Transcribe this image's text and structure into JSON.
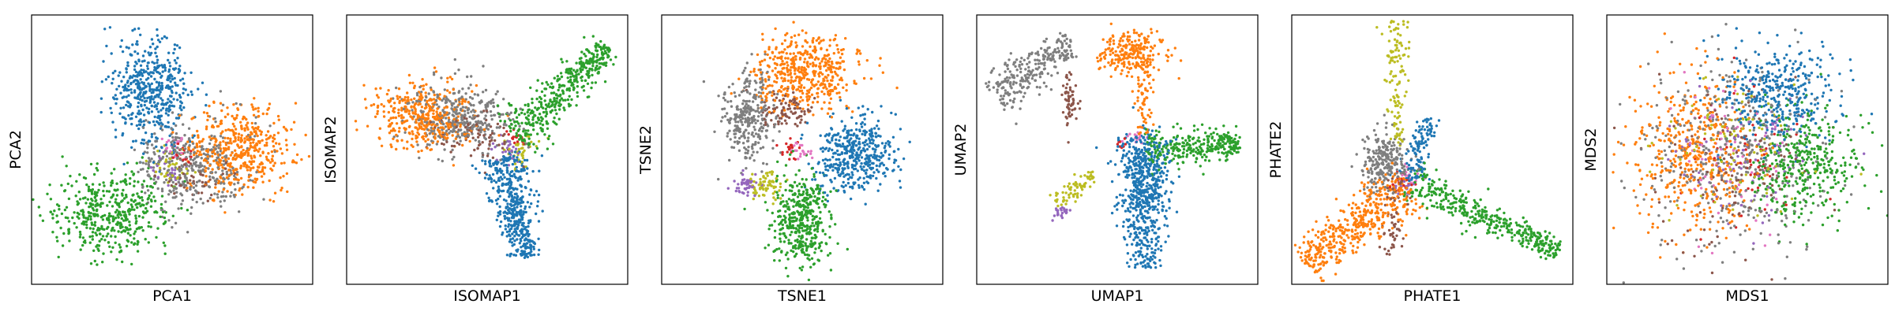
{
  "colors": {
    "blue": "#1f77b4",
    "orange": "#ff7f0e",
    "green": "#2ca02c",
    "red": "#d62728",
    "purple": "#9467bd",
    "brown": "#8c564b",
    "pink": "#e377c2",
    "gray": "#7f7f7f",
    "olive": "#bcbd22"
  },
  "chart_data": [
    {
      "type": "scatter",
      "title": "",
      "xlabel": "PCA1",
      "ylabel": "PCA2",
      "xlim": [
        0,
        1
      ],
      "ylim": [
        0,
        1
      ],
      "ticks": "none",
      "grid": false,
      "clusters": [
        {
          "color": "gray",
          "center": [
            0.58,
            0.44
          ],
          "spread": [
            0.1,
            0.08
          ],
          "count": 380
        },
        {
          "color": "orange",
          "center": [
            0.74,
            0.5
          ],
          "spread": [
            0.09,
            0.08
          ],
          "count": 460
        },
        {
          "color": "green",
          "center": [
            0.28,
            0.27
          ],
          "spread": [
            0.1,
            0.08
          ],
          "count": 460
        },
        {
          "color": "blue",
          "center": [
            0.42,
            0.71
          ],
          "spread": [
            0.07,
            0.1
          ],
          "count": 480
        },
        {
          "color": "olive",
          "center": [
            0.5,
            0.44
          ],
          "spread": [
            0.03,
            0.03
          ],
          "count": 40
        },
        {
          "color": "purple",
          "center": [
            0.49,
            0.42
          ],
          "spread": [
            0.03,
            0.03
          ],
          "count": 25
        },
        {
          "color": "red",
          "center": [
            0.53,
            0.48
          ],
          "spread": [
            0.02,
            0.02
          ],
          "count": 15
        },
        {
          "color": "pink",
          "center": [
            0.5,
            0.5
          ],
          "spread": [
            0.02,
            0.02
          ],
          "count": 20
        },
        {
          "color": "brown",
          "center": [
            0.6,
            0.39
          ],
          "spread": [
            0.05,
            0.03
          ],
          "count": 40
        }
      ]
    },
    {
      "type": "scatter",
      "title": "",
      "xlabel": "ISOMAP1",
      "ylabel": "ISOMAP2",
      "xlim": [
        0,
        1
      ],
      "ylim": [
        0,
        1
      ],
      "ticks": "none",
      "grid": false,
      "clusters": [
        {
          "color": "orange",
          "center": [
            0.27,
            0.62
          ],
          "spread": [
            0.09,
            0.06
          ],
          "count": 380
        },
        {
          "color": "gray",
          "center": [
            0.4,
            0.62
          ],
          "spread": [
            0.09,
            0.06
          ],
          "count": 360
        },
        {
          "color": "brown",
          "center": [
            0.44,
            0.55
          ],
          "spread": [
            0.06,
            0.05
          ],
          "count": 80
        },
        {
          "color": "olive",
          "center": [
            0.62,
            0.5
          ],
          "spread": [
            0.03,
            0.04
          ],
          "count": 40
        },
        {
          "color": "purple",
          "center": [
            0.57,
            0.5
          ],
          "spread": [
            0.03,
            0.03
          ],
          "count": 25
        },
        {
          "color": "red",
          "center": [
            0.6,
            0.55
          ],
          "spread": [
            0.02,
            0.02
          ],
          "count": 15
        }
      ],
      "arms": [
        {
          "color": "green",
          "from": [
            0.6,
            0.55
          ],
          "to": [
            0.93,
            0.88
          ],
          "width": 0.04,
          "count": 420
        },
        {
          "color": "blue",
          "from": [
            0.55,
            0.48
          ],
          "to": [
            0.64,
            0.1
          ],
          "width": 0.04,
          "count": 460
        }
      ]
    },
    {
      "type": "scatter",
      "title": "",
      "xlabel": "TSNE1",
      "ylabel": "TSNE2",
      "xlim": [
        0,
        1
      ],
      "ylim": [
        0,
        1
      ],
      "ticks": "none",
      "grid": false,
      "clusters": [
        {
          "color": "orange",
          "center": [
            0.51,
            0.79
          ],
          "spread": [
            0.09,
            0.07
          ],
          "count": 480
        },
        {
          "color": "brown",
          "center": [
            0.44,
            0.65
          ],
          "spread": [
            0.05,
            0.03
          ],
          "count": 90
        },
        {
          "color": "gray",
          "center": [
            0.31,
            0.62
          ],
          "spread": [
            0.05,
            0.08
          ],
          "count": 300
        },
        {
          "color": "blue",
          "center": [
            0.68,
            0.49
          ],
          "spread": [
            0.07,
            0.07
          ],
          "count": 440
        },
        {
          "color": "green",
          "center": [
            0.5,
            0.23
          ],
          "spread": [
            0.05,
            0.09
          ],
          "count": 420
        },
        {
          "color": "olive",
          "center": [
            0.37,
            0.37
          ],
          "spread": [
            0.03,
            0.03
          ],
          "count": 70
        },
        {
          "color": "purple",
          "center": [
            0.3,
            0.37
          ],
          "spread": [
            0.02,
            0.02
          ],
          "count": 45
        },
        {
          "color": "red",
          "center": [
            0.46,
            0.5
          ],
          "spread": [
            0.02,
            0.02
          ],
          "count": 20
        },
        {
          "color": "pink",
          "center": [
            0.5,
            0.5
          ],
          "spread": [
            0.02,
            0.02
          ],
          "count": 20
        }
      ]
    },
    {
      "type": "scatter",
      "title": "",
      "xlabel": "UMAP1",
      "ylabel": "UMAP2",
      "xlim": [
        0,
        1
      ],
      "ylim": [
        0,
        1
      ],
      "ticks": "none",
      "grid": false,
      "clusters": [
        {
          "color": "orange",
          "center": [
            0.55,
            0.86
          ],
          "spread": [
            0.06,
            0.04
          ],
          "count": 220
        },
        {
          "color": "blue",
          "center": [
            0.6,
            0.38
          ],
          "spread": [
            0.04,
            0.09
          ],
          "count": 300
        },
        {
          "color": "brown",
          "center": [
            0.33,
            0.68
          ],
          "spread": [
            0.015,
            0.05
          ],
          "count": 60
        },
        {
          "color": "red",
          "center": [
            0.51,
            0.52
          ],
          "spread": [
            0.01,
            0.01
          ],
          "count": 10
        },
        {
          "color": "pink",
          "center": [
            0.57,
            0.55
          ],
          "spread": [
            0.02,
            0.02
          ],
          "count": 15
        },
        {
          "color": "purple",
          "center": [
            0.3,
            0.27
          ],
          "spread": [
            0.015,
            0.02
          ],
          "count": 25
        }
      ],
      "arms": [
        {
          "color": "gray",
          "from": [
            0.06,
            0.7
          ],
          "to": [
            0.34,
            0.9
          ],
          "width": 0.04,
          "count": 260
        },
        {
          "color": "orange",
          "from": [
            0.58,
            0.85
          ],
          "to": [
            0.6,
            0.55
          ],
          "width": 0.02,
          "count": 80
        },
        {
          "color": "green",
          "from": [
            0.6,
            0.5
          ],
          "to": [
            0.94,
            0.52
          ],
          "width": 0.035,
          "count": 300
        },
        {
          "color": "blue",
          "from": [
            0.6,
            0.55
          ],
          "to": [
            0.59,
            0.06
          ],
          "width": 0.045,
          "count": 360
        },
        {
          "color": "olive",
          "from": [
            0.28,
            0.3
          ],
          "to": [
            0.42,
            0.41
          ],
          "width": 0.02,
          "count": 70
        }
      ]
    },
    {
      "type": "scatter",
      "title": "",
      "xlabel": "PHATE1",
      "ylabel": "PHATE2",
      "xlim": [
        0,
        1
      ],
      "ylim": [
        0,
        1
      ],
      "ticks": "none",
      "grid": false,
      "clusters": [
        {
          "color": "gray",
          "center": [
            0.32,
            0.45
          ],
          "spread": [
            0.04,
            0.06
          ],
          "count": 180
        },
        {
          "color": "red",
          "center": [
            0.39,
            0.38
          ],
          "spread": [
            0.02,
            0.02
          ],
          "count": 20
        },
        {
          "color": "pink",
          "center": [
            0.42,
            0.4
          ],
          "spread": [
            0.02,
            0.02
          ],
          "count": 20
        },
        {
          "color": "purple",
          "center": [
            0.4,
            0.36
          ],
          "spread": [
            0.02,
            0.02
          ],
          "count": 15
        }
      ],
      "arms": [
        {
          "color": "orange",
          "from": [
            0.42,
            0.38
          ],
          "to": [
            0.05,
            0.07
          ],
          "width": 0.05,
          "count": 460
        },
        {
          "color": "green",
          "from": [
            0.42,
            0.38
          ],
          "to": [
            0.95,
            0.12
          ],
          "width": 0.03,
          "count": 380
        },
        {
          "color": "olive",
          "from": [
            0.37,
            0.98
          ],
          "to": [
            0.38,
            0.5
          ],
          "width": 0.02,
          "count": 120
        },
        {
          "color": "blue",
          "from": [
            0.42,
            0.38
          ],
          "to": [
            0.49,
            0.62
          ],
          "width": 0.025,
          "count": 120
        },
        {
          "color": "brown",
          "from": [
            0.38,
            0.4
          ],
          "to": [
            0.35,
            0.1
          ],
          "width": 0.02,
          "count": 60
        },
        {
          "color": "gray",
          "from": [
            0.38,
            0.4
          ],
          "to": [
            0.34,
            0.52
          ],
          "width": 0.04,
          "count": 60
        }
      ]
    },
    {
      "type": "scatter",
      "title": "",
      "xlabel": "MDS1",
      "ylabel": "MDS2",
      "xlim": [
        0,
        1
      ],
      "ylim": [
        0,
        1
      ],
      "ticks": "none",
      "grid": false,
      "clusters": [
        {
          "color": "gray",
          "center": [
            0.45,
            0.47
          ],
          "spread": [
            0.17,
            0.17
          ],
          "count": 380
        },
        {
          "color": "orange",
          "center": [
            0.3,
            0.48
          ],
          "spread": [
            0.11,
            0.15
          ],
          "count": 440
        },
        {
          "color": "green",
          "center": [
            0.7,
            0.45
          ],
          "spread": [
            0.1,
            0.11
          ],
          "count": 380
        },
        {
          "color": "blue",
          "center": [
            0.6,
            0.7
          ],
          "spread": [
            0.11,
            0.09
          ],
          "count": 380
        },
        {
          "color": "brown",
          "center": [
            0.45,
            0.45
          ],
          "spread": [
            0.15,
            0.15
          ],
          "count": 120
        },
        {
          "color": "purple",
          "center": [
            0.48,
            0.45
          ],
          "spread": [
            0.13,
            0.13
          ],
          "count": 90
        },
        {
          "color": "olive",
          "center": [
            0.45,
            0.5
          ],
          "spread": [
            0.13,
            0.13
          ],
          "count": 90
        },
        {
          "color": "pink",
          "center": [
            0.45,
            0.48
          ],
          "spread": [
            0.13,
            0.13
          ],
          "count": 70
        },
        {
          "color": "red",
          "center": [
            0.48,
            0.48
          ],
          "spread": [
            0.13,
            0.13
          ],
          "count": 50
        }
      ]
    }
  ]
}
